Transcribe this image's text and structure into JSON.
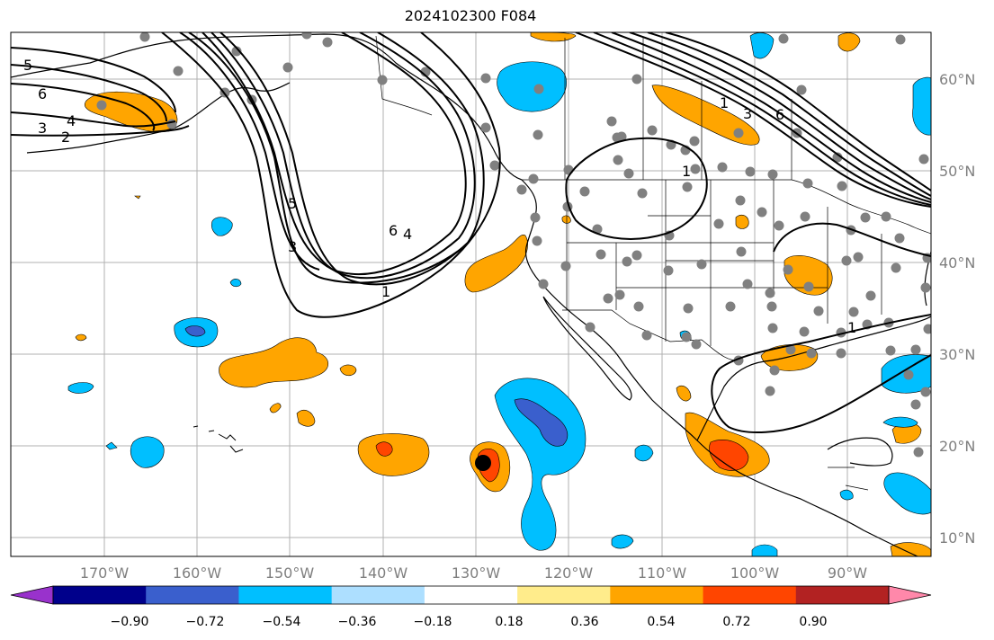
{
  "title": "2024102300 F084",
  "lon_ticks": [
    "170°W",
    "160°W",
    "150°W",
    "140°W",
    "130°W",
    "120°W",
    "110°W",
    "100°W",
    "90°W"
  ],
  "lat_ticks": [
    "60°N",
    "50°N",
    "40°N",
    "30°N",
    "20°N",
    "10°N"
  ],
  "colorbar": {
    "ticks": [
      "−0.90",
      "−0.72",
      "−0.54",
      "−0.36",
      "−0.18",
      "0.18",
      "0.36",
      "0.54",
      "0.72",
      "0.90"
    ],
    "colors": [
      "#9932CC",
      "#00008B",
      "#3A5FCD",
      "#00BFFF",
      "#ADDFFF",
      "#FFFFFF",
      "#FFEC8B",
      "#FFA500",
      "#FF4500",
      "#B22222",
      "#FF88AA"
    ]
  },
  "contour_labels": [
    "5",
    "6",
    "4",
    "3",
    "2",
    "5",
    "3",
    "6",
    "4",
    "1",
    "1",
    "3",
    "6",
    "1",
    "1"
  ],
  "colors": {
    "blue": "#00BFFF",
    "blue_dark": "#3A5FCD",
    "orange": "#FFA500",
    "red": "#FF4500",
    "gray_dot": "#808080",
    "grid": "#b0b0b0"
  }
}
